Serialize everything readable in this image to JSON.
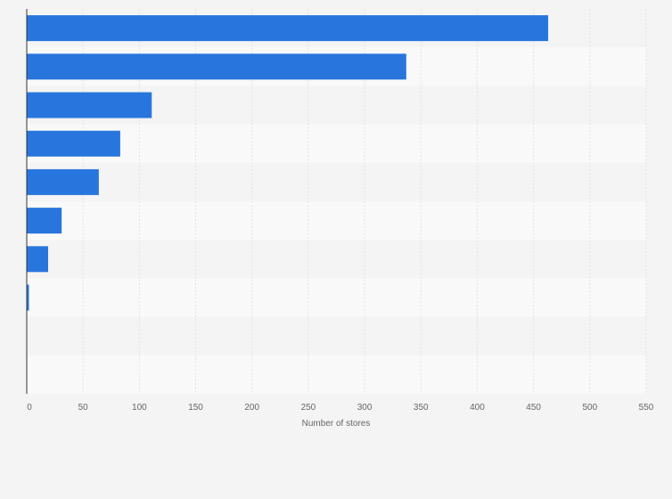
{
  "chart_data": {
    "type": "bar",
    "orientation": "horizontal",
    "categories": [
      "",
      "",
      "",
      "",
      "",
      "",
      "",
      "",
      "",
      ""
    ],
    "values": [
      463,
      337,
      111,
      83,
      64,
      31,
      19,
      2,
      0,
      0
    ],
    "xlabel": "Number of stores",
    "ylabel": "",
    "xlim": [
      0,
      550
    ],
    "xticks": [
      "0",
      "50",
      "100",
      "150",
      "200",
      "250",
      "300",
      "350",
      "400",
      "450",
      "500",
      "550"
    ],
    "grid": true,
    "legend": "none"
  },
  "colors": {
    "bar": "#2876dd",
    "band_light": "#f9f9f9",
    "band_dark": "#f4f4f4",
    "grid": "#e2e2e2",
    "axis": "#333333",
    "text": "#666666"
  }
}
